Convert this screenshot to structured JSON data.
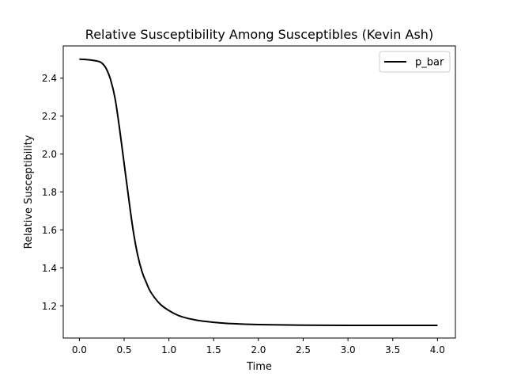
{
  "chart_data": {
    "type": "line",
    "title": "Relative Susceptibility Among Susceptibles (Kevin Ash)",
    "xlabel": "Time",
    "ylabel": "Relative Susceptibility",
    "xlim": [
      -0.18,
      4.2
    ],
    "ylim": [
      1.03,
      2.57
    ],
    "xticks": [
      0.0,
      0.5,
      1.0,
      1.5,
      2.0,
      2.5,
      3.0,
      3.5,
      4.0
    ],
    "xtick_labels": [
      "0.0",
      "0.5",
      "1.0",
      "1.5",
      "2.0",
      "2.5",
      "3.0",
      "3.5",
      "4.0"
    ],
    "yticks": [
      1.2,
      1.4,
      1.6,
      1.8,
      2.0,
      2.2,
      2.4
    ],
    "ytick_labels": [
      "1.2",
      "1.4",
      "1.6",
      "1.8",
      "2.0",
      "2.2",
      "2.4"
    ],
    "grid": false,
    "legend_position": "top-right",
    "series": [
      {
        "name": "p_bar",
        "color": "#000000",
        "x": [
          0.0,
          0.1,
          0.2,
          0.25,
          0.3,
          0.35,
          0.4,
          0.45,
          0.5,
          0.55,
          0.6,
          0.65,
          0.7,
          0.75,
          0.8,
          0.9,
          1.0,
          1.1,
          1.2,
          1.3,
          1.4,
          1.5,
          1.7,
          2.0,
          2.5,
          3.0,
          3.5,
          4.0
        ],
        "y": [
          2.5,
          2.497,
          2.49,
          2.48,
          2.45,
          2.39,
          2.29,
          2.13,
          1.95,
          1.77,
          1.6,
          1.47,
          1.38,
          1.32,
          1.27,
          1.21,
          1.175,
          1.15,
          1.135,
          1.125,
          1.118,
          1.113,
          1.106,
          1.101,
          1.098,
          1.097,
          1.097,
          1.097
        ]
      }
    ]
  }
}
